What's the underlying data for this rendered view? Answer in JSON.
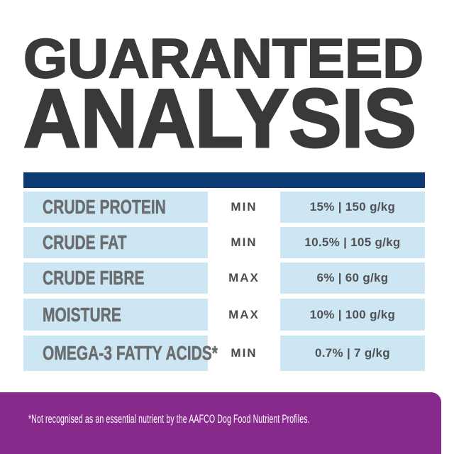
{
  "title": {
    "line1": "GUARANTEED",
    "line2": "ANALYSIS"
  },
  "table": {
    "rows": [
      {
        "nutrient": "CRUDE PROTEIN",
        "basis": "MIN",
        "value": "15% | 150 g/kg"
      },
      {
        "nutrient": "CRUDE FAT",
        "basis": "MIN",
        "value": "10.5% | 105 g/kg"
      },
      {
        "nutrient": "CRUDE FIBRE",
        "basis": "MAX",
        "value": "6% | 60 g/kg"
      },
      {
        "nutrient": "MOISTURE",
        "basis": "MAX",
        "value": "10% | 100 g/kg"
      },
      {
        "nutrient": "OMEGA-3 FATTY ACIDS*",
        "basis": "MIN",
        "value": "0.7% | 7 g/kg"
      }
    ]
  },
  "footnote": "*Not recognised as an essential nutrient by the AAFCO Dog Food Nutrient Profiles.",
  "colors": {
    "heading": "#39393b",
    "divider_bar": "#0d3a72",
    "row_background": "#cde6f4",
    "nutrient_text": "#6b6c6e",
    "basis_text": "#4b4b4d",
    "value_text": "#515154",
    "footer_background": "#872a8c",
    "footer_text": "#ffffff"
  }
}
